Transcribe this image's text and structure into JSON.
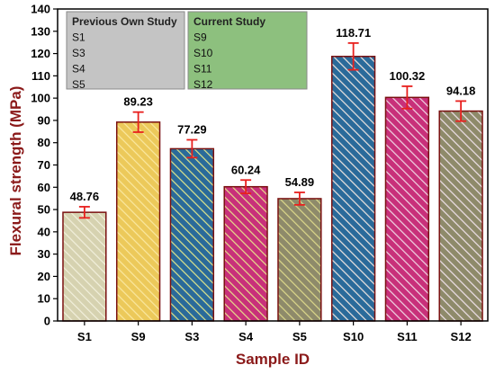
{
  "chart_data": {
    "type": "bar",
    "xlabel": "Sample ID",
    "ylabel": "Flexural strength (MPa)",
    "ylim": [
      0,
      140
    ],
    "yticks": [
      0,
      10,
      20,
      30,
      40,
      50,
      60,
      70,
      80,
      90,
      100,
      110,
      120,
      130,
      140
    ],
    "grid": false,
    "categories": [
      "S1",
      "S9",
      "S3",
      "S4",
      "S5",
      "S10",
      "S11",
      "S12"
    ],
    "values": [
      48.76,
      89.23,
      77.29,
      60.24,
      54.89,
      118.71,
      100.32,
      94.18
    ],
    "value_labels": [
      "48.76",
      "89.23",
      "77.29",
      "60.24",
      "54.89",
      "118.71",
      "100.32",
      "94.18"
    ],
    "errors": [
      2.5,
      4.5,
      4.0,
      3.0,
      2.8,
      6.0,
      5.0,
      4.5
    ],
    "bar_styles": [
      {
        "fill": "#d6d2b0",
        "stripe": "#f2f0dc"
      },
      {
        "fill": "#ecc95a",
        "stripe": "#fae8a0"
      },
      {
        "fill": "#2a6a9a",
        "stripe": "#dfe58a"
      },
      {
        "fill": "#c8307a",
        "stripe": "#e6e08a"
      },
      {
        "fill": "#8e8a6a",
        "stripe": "#dcd88a"
      },
      {
        "fill": "#2a6a9a",
        "stripe": "#f0e6e0"
      },
      {
        "fill": "#c8307a",
        "stripe": "#f0d8e4"
      },
      {
        "fill": "#8e8a6a",
        "stripe": "#f0e2ea"
      }
    ],
    "bar_outline": "#7a1010",
    "error_color": "#e8201e",
    "legend": {
      "placement": "top-left",
      "groups": [
        {
          "title": "Previous Own Study",
          "items": [
            "S1",
            "S3",
            "S4",
            "S5"
          ],
          "color": "#c4c4c4"
        },
        {
          "title": "Current Study",
          "items": [
            "S9",
            "S10",
            "S11",
            "S12"
          ],
          "color": "#8dc07e"
        }
      ]
    }
  }
}
